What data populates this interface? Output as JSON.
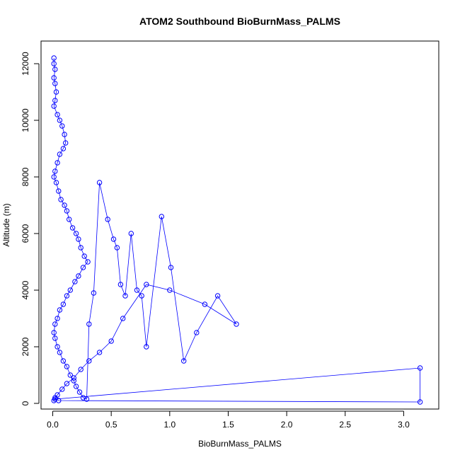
{
  "chart_data": {
    "type": "scatter",
    "title": "ATOM2 Southbound BioBurnMass_PALMS",
    "xlabel": "BioBurnMass_PALMS",
    "ylabel": "Altitude (m)",
    "xlim": [
      -0.1,
      3.3
    ],
    "ylim": [
      -200,
      12800
    ],
    "x_ticks": [
      0.0,
      0.5,
      1.0,
      1.5,
      2.0,
      2.5,
      3.0
    ],
    "x_tick_labels": [
      "0.0",
      "0.5",
      "1.0",
      "1.5",
      "2.0",
      "2.5",
      "3.0"
    ],
    "y_ticks": [
      0,
      2000,
      4000,
      6000,
      8000,
      10000,
      12000
    ],
    "y_tick_labels": [
      "0",
      "2000",
      "4000",
      "6000",
      "8000",
      "10000",
      "12000"
    ],
    "marker": "open-circle",
    "connect_points": true,
    "grid": false,
    "legend": "none",
    "color": "#0000ff",
    "series": [
      {
        "x": [
          0.01,
          0.01,
          0.02,
          0.01,
          0.02,
          0.03,
          0.02,
          0.01,
          0.04,
          0.06,
          0.08,
          0.1,
          0.11,
          0.09,
          0.06,
          0.04,
          0.02,
          0.01,
          0.03,
          0.05,
          0.07,
          0.1,
          0.12,
          0.14,
          0.17,
          0.2,
          0.22,
          0.24,
          0.27,
          0.3,
          0.26,
          0.22,
          0.19,
          0.15,
          0.12,
          0.09,
          0.06,
          0.04,
          0.02,
          0.01,
          0.02,
          0.04,
          0.06,
          0.09,
          0.12,
          0.15,
          0.18,
          0.2,
          0.23,
          0.26,
          0.29,
          0.31,
          0.35,
          0.4,
          0.47,
          0.52,
          0.55,
          0.58,
          0.62,
          0.67,
          0.72,
          0.76,
          0.8,
          0.93,
          1.01,
          1.12,
          1.23,
          1.41,
          1.57,
          1.3,
          1.0,
          0.8,
          0.6,
          0.5,
          0.4,
          0.31,
          0.24,
          0.18,
          0.12,
          0.08,
          0.04,
          0.02,
          3.14,
          3.14,
          0.05,
          0.02,
          0.01
        ],
        "y": [
          12200,
          12000,
          11800,
          11500,
          11300,
          11000,
          10700,
          10500,
          10200,
          10000,
          9800,
          9500,
          9200,
          9000,
          8800,
          8500,
          8200,
          8000,
          7800,
          7500,
          7200,
          7000,
          6800,
          6500,
          6200,
          6000,
          5800,
          5500,
          5200,
          5000,
          4800,
          4500,
          4300,
          4000,
          3800,
          3500,
          3300,
          3000,
          2800,
          2500,
          2300,
          2000,
          1800,
          1500,
          1300,
          1000,
          800,
          600,
          400,
          200,
          150,
          2800,
          3900,
          7800,
          6500,
          5800,
          5500,
          4200,
          3800,
          6000,
          4000,
          3800,
          2000,
          6600,
          4800,
          1500,
          2500,
          3800,
          2800,
          3500,
          4000,
          4200,
          3000,
          2200,
          1800,
          1500,
          1200,
          900,
          700,
          500,
          300,
          150,
          1250,
          50,
          100,
          200,
          100
        ]
      }
    ]
  }
}
